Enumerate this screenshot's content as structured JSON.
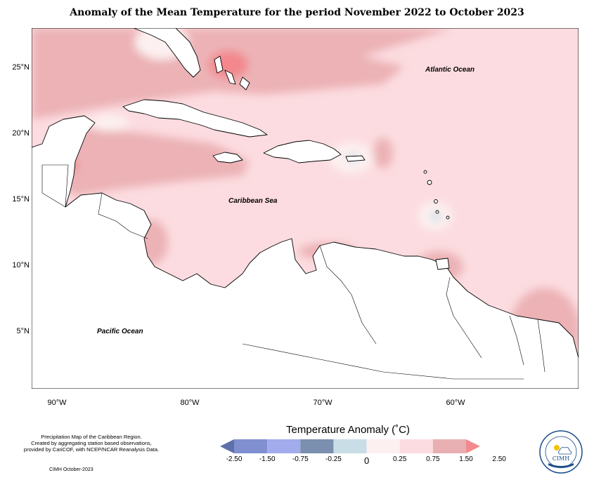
{
  "title": "Anomaly of the Mean Temperature for the period November 2022 to October 2023",
  "map": {
    "lat_ticks": [
      "25°N",
      "20°N",
      "15°N",
      "10°N",
      "5°N"
    ],
    "lon_ticks": [
      "90°W",
      "80°W",
      "70°W",
      "60°W"
    ],
    "labels": {
      "atlantic": "Atlantic Ocean",
      "caribbean": "Caribbean Sea",
      "pacific": "Pacific Ocean"
    },
    "colors": {
      "land": "#ffffff",
      "anom_0_025": "#fdf0f0",
      "anom_025_075": "#fcdce0",
      "anom_075_150": "#ecb2b6",
      "anom_150_250": "#f3878c",
      "anom_neg": "#c8dde5"
    }
  },
  "legend": {
    "title": "Temperature Anomaly (˚C)",
    "labels": [
      "-2.50",
      "-1.50",
      "-0.75",
      "-0.25",
      "0",
      "0.25",
      "0.75",
      "1.50",
      "2.50"
    ],
    "colors": [
      "#5f6fab",
      "#7f8fd0",
      "#a2acec",
      "#7b8fae",
      "#c8dde5",
      "#fdf0f0",
      "#fcdce0",
      "#e9b0b4",
      "#f28a8e"
    ]
  },
  "notes": {
    "line1": "Precipitation Map of the Caribbean Region.",
    "line2": "Created by aggregating station based observations,",
    "line3": "provided by CariCOF, with NCEP/NCAR Reanalysis Data.",
    "date": "CIMH October-2023"
  },
  "logo": {
    "ring_text": "Caribbean Institute for Meteorology and Hydrology",
    "abbr": "CIMH"
  }
}
